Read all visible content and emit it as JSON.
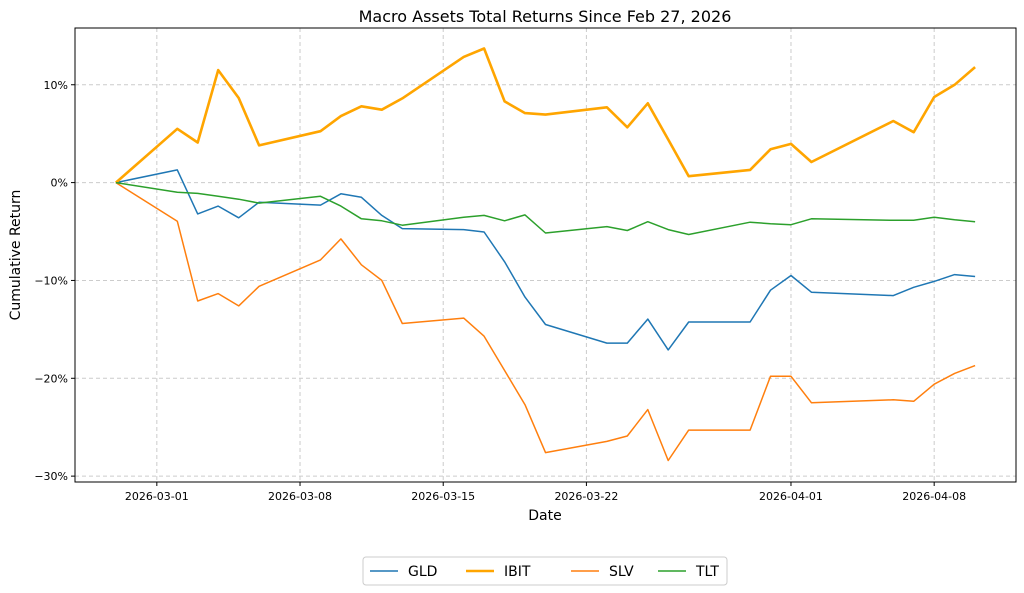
{
  "chart_data": {
    "type": "line",
    "title": "Macro Assets Total Returns Since Feb 27, 2026",
    "xlabel": "Date",
    "ylabel": "Cumulative Return",
    "xlim": [
      "2026-02-25",
      "2026-04-12"
    ],
    "ylim": [
      -30.6,
      15.8
    ],
    "grid": true,
    "legend_position": "bottom-center",
    "x_ticks": [
      "2026-03-01",
      "2026-03-08",
      "2026-03-15",
      "2026-03-22",
      "2026-04-01",
      "2026-04-08"
    ],
    "y_ticks": [
      {
        "value": 10,
        "label": "10%"
      },
      {
        "value": 0,
        "label": "0%"
      },
      {
        "value": -10,
        "label": "−10%"
      },
      {
        "value": -20,
        "label": "−20%"
      },
      {
        "value": -30,
        "label": "−30%"
      }
    ],
    "x": [
      "2026-02-27",
      "2026-03-02",
      "2026-03-03",
      "2026-03-04",
      "2026-03-05",
      "2026-03-06",
      "2026-03-09",
      "2026-03-10",
      "2026-03-11",
      "2026-03-12",
      "2026-03-13",
      "2026-03-16",
      "2026-03-17",
      "2026-03-18",
      "2026-03-19",
      "2026-03-20",
      "2026-03-23",
      "2026-03-24",
      "2026-03-25",
      "2026-03-26",
      "2026-03-27",
      "2026-03-30",
      "2026-03-31",
      "2026-04-01",
      "2026-04-02",
      "2026-04-06",
      "2026-04-07",
      "2026-04-08",
      "2026-04-09",
      "2026-04-10"
    ],
    "series": [
      {
        "name": "GLD",
        "color": "#1f77b4",
        "width": 1.5,
        "values": [
          0,
          1.3,
          -3.2,
          -2.4,
          -3.6,
          -2.0,
          -2.3,
          -1.15,
          -1.5,
          -3.35,
          -4.7,
          -4.8,
          -5.05,
          -8.1,
          -11.7,
          -14.5,
          -16.4,
          -16.4,
          -13.95,
          -17.1,
          -14.25,
          -14.25,
          -11.0,
          -9.5,
          -11.2,
          -11.55,
          -10.7,
          -10.1,
          -9.4,
          -9.6
        ]
      },
      {
        "name": "IBIT",
        "color": "#ffa500",
        "width": 2.6,
        "values": [
          0,
          5.5,
          4.1,
          11.5,
          8.65,
          3.8,
          5.25,
          6.8,
          7.8,
          7.45,
          8.6,
          12.85,
          13.7,
          8.3,
          7.1,
          6.95,
          7.7,
          5.65,
          8.1,
          4.4,
          0.65,
          1.3,
          3.4,
          3.95,
          2.1,
          6.3,
          5.15,
          8.75,
          10.0,
          11.8
        ]
      },
      {
        "name": "SLV",
        "color": "#ff7f0e",
        "width": 1.5,
        "values": [
          0,
          -3.95,
          -12.1,
          -11.35,
          -12.6,
          -10.6,
          -7.9,
          -5.75,
          -8.4,
          -10.0,
          -14.4,
          -13.85,
          -15.7,
          -19.2,
          -22.7,
          -27.6,
          -26.45,
          -25.9,
          -23.2,
          -28.4,
          -25.3,
          -25.3,
          -19.8,
          -19.8,
          -22.5,
          -22.2,
          -22.35,
          -20.6,
          -19.5,
          -18.7
        ]
      },
      {
        "name": "TLT",
        "color": "#2ca02c",
        "width": 1.5,
        "values": [
          0,
          -0.98,
          -1.1,
          -1.4,
          -1.7,
          -2.1,
          -1.4,
          -2.4,
          -3.7,
          -3.9,
          -4.35,
          -3.55,
          -3.35,
          -3.9,
          -3.3,
          -5.15,
          -4.5,
          -4.9,
          -4.0,
          -4.8,
          -5.3,
          -4.05,
          -4.2,
          -4.3,
          -3.7,
          -3.85,
          -3.85,
          -3.55,
          -3.8,
          -4.0
        ]
      }
    ]
  }
}
